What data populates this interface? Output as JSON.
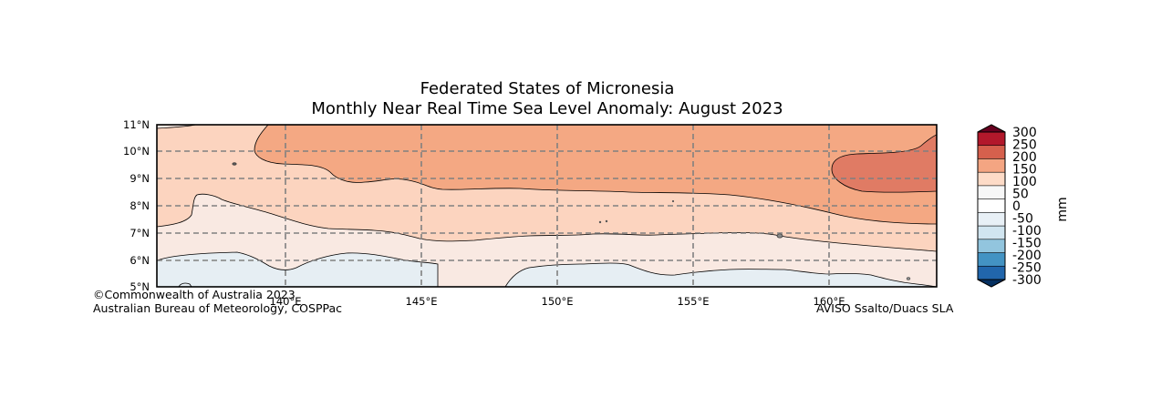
{
  "title_line1": "Federated States of Micronesia",
  "title_line2": "Monthly Near Real Time Sea Level Anomaly: August 2023",
  "credit_left_line1": "©Commonwealth of Australia 2023",
  "credit_left_line2": "Australian Bureau of Meteorology, COSPPac",
  "credit_right": "AVISO Ssalto/Duacs SLA",
  "lat_labels": [
    "11°N",
    "10°N",
    "9°N",
    "8°N",
    "7°N",
    "6°N",
    "5°N"
  ],
  "lon_labels": [
    "140°E",
    "145°E",
    "150°E",
    "155°E",
    "160°E"
  ],
  "colorbar": {
    "unit_label": "mm",
    "tick_labels": [
      "300",
      "250",
      "200",
      "150",
      "100",
      "50",
      "0",
      "-50",
      "-100",
      "-150",
      "-200",
      "-250",
      "-300"
    ],
    "colors": [
      "#67001f",
      "#b2182b",
      "#d6604d",
      "#f4a582",
      "#fddbc7",
      "#f7f7f7",
      "#ffffff",
      "#e8f0f6",
      "#d1e5f0",
      "#92c5de",
      "#4393c3",
      "#2166ac",
      "#053061"
    ]
  },
  "colors": {
    "band_0_50": "#f9e9e2",
    "band_50_100": "#fcd4bf",
    "band_100_150": "#f4a883",
    "band_150_200": "#e07b64",
    "band_neg50_0": "#e6eef3",
    "grid": "#808080"
  }
}
